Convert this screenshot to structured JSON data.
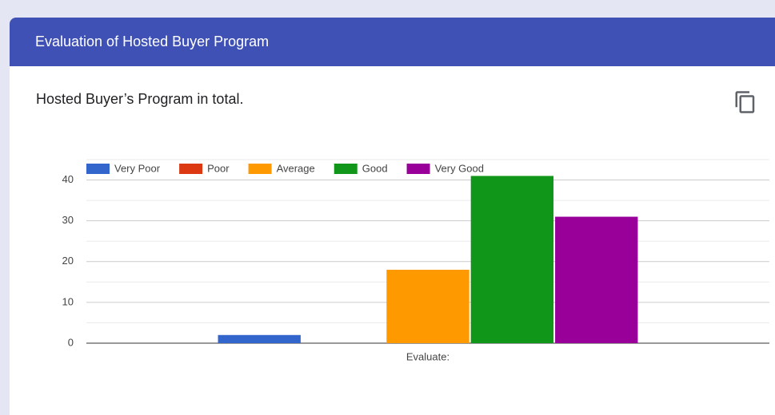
{
  "header": {
    "title": "Evaluation of Hosted Buyer Program"
  },
  "question": "Hosted Buyer’s Program in total.",
  "chart_data": {
    "type": "bar",
    "categories": [
      "Evaluate:"
    ],
    "series": [
      {
        "name": "Very Poor",
        "color": "#3366cc",
        "values": [
          2
        ]
      },
      {
        "name": "Poor",
        "color": "#dc3912",
        "values": [
          0
        ]
      },
      {
        "name": "Average",
        "color": "#ff9900",
        "values": [
          18
        ]
      },
      {
        "name": "Good",
        "color": "#109618",
        "values": [
          41
        ]
      },
      {
        "name": "Very Good",
        "color": "#990099",
        "values": [
          31
        ]
      }
    ],
    "ylim": [
      0,
      45
    ],
    "yticks": [
      0,
      10,
      20,
      30,
      40
    ],
    "minor_yticks": [
      5,
      15,
      25,
      35,
      45
    ],
    "grid": true,
    "legend": "top"
  }
}
